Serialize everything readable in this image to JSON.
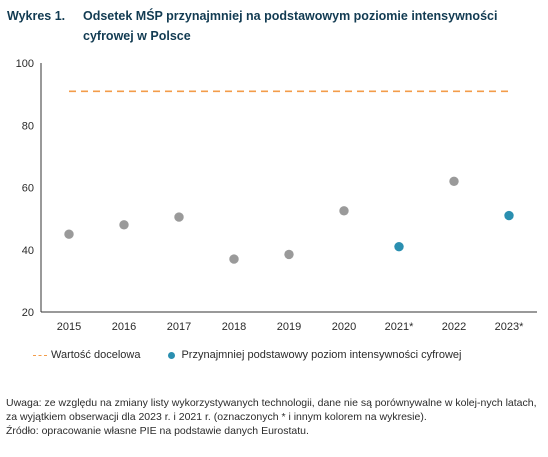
{
  "figure": {
    "label": "Wykres 1.",
    "title_line1": "Odsetek MŚP przynajmniej na podstawowym poziomie intensywności",
    "title_line2": "cyfrowej w Polsce"
  },
  "legend": {
    "target_label": "Wartość docelowa",
    "series_label": "Przynajmniej podstawowy poziom intensywności cyfrowej"
  },
  "notes": {
    "remark": "Uwaga: ze względu na zmiany listy wykorzystywanych technologii, dane nie są porównywalne w kolej-nych latach, za wyjątkiem obserwacji dla 2023 r. i 2021 r. (oznaczonych * i innym kolorem na wykresie).",
    "source": "Źródło: opracowanie własne PIE na podstawie danych Eurostatu."
  },
  "colors": {
    "title": "#123b52",
    "target_line": "#f39c4a",
    "point_default": "#9a9a9a",
    "point_highlight": "#2a8fb0",
    "axis": "#333333"
  },
  "chart_data": {
    "type": "scatter",
    "categories": [
      "2015",
      "2016",
      "2017",
      "2018",
      "2019",
      "2020",
      "2021*",
      "2022",
      "2023*"
    ],
    "values": [
      45,
      48,
      50.5,
      37,
      38.5,
      52.5,
      41,
      62,
      51
    ],
    "highlighted": [
      false,
      false,
      false,
      false,
      false,
      false,
      true,
      false,
      true
    ],
    "target": 90.9,
    "ylim": [
      20,
      100
    ],
    "yticks": [
      20,
      40,
      60,
      80,
      100
    ],
    "title": "Odsetek MŚP przynajmniej na podstawowym poziomie intensywności cyfrowej w Polsce",
    "xlabel": "",
    "ylabel": "",
    "grid": false,
    "legend_position": "bottom"
  }
}
